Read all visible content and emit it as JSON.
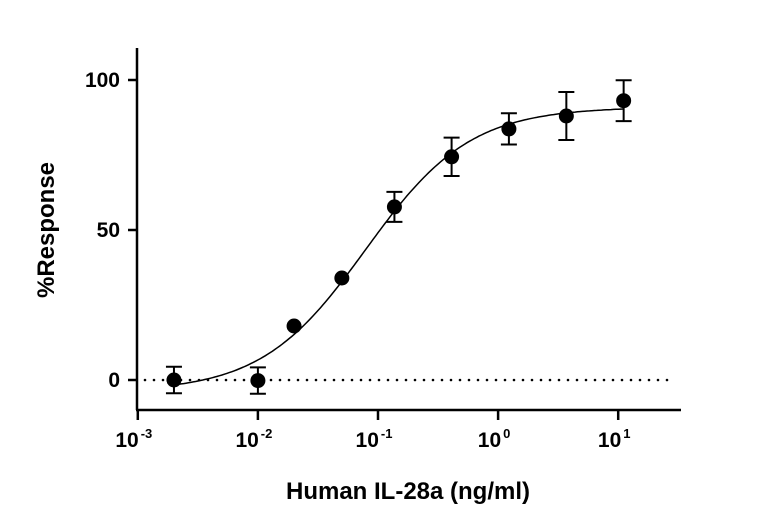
{
  "chart_data": {
    "type": "scatter",
    "xlabel": "Human IL-28a (ng/ml)",
    "ylabel": "%Response",
    "xscale": "log",
    "xlim": [
      0.001,
      33
    ],
    "ylim": [
      -10,
      110
    ],
    "x_ticks": [
      {
        "base": "10",
        "exp": "-3",
        "value": 0.001
      },
      {
        "base": "10",
        "exp": "-2",
        "value": 0.01
      },
      {
        "base": "10",
        "exp": "-1",
        "value": 0.1
      },
      {
        "base": "10",
        "exp": "0",
        "value": 1
      },
      {
        "base": "10",
        "exp": "1",
        "value": 10
      }
    ],
    "y_ticks": [
      {
        "label": "0",
        "value": 0
      },
      {
        "label": "50",
        "value": 50
      },
      {
        "label": "100",
        "value": 100
      }
    ],
    "grid": false,
    "reference_line": {
      "y": 0,
      "style": "dotted"
    },
    "points": [
      {
        "x": 0.002,
        "y": 0,
        "err": 4.4
      },
      {
        "x": 0.01,
        "y": -0.2,
        "err": 4.4
      },
      {
        "x": 0.02,
        "y": 18,
        "err": 0
      },
      {
        "x": 0.05,
        "y": 34,
        "err": 0
      },
      {
        "x": 0.137,
        "y": 57.7,
        "err": 5
      },
      {
        "x": 0.41,
        "y": 74.4,
        "err": 6.4
      },
      {
        "x": 1.23,
        "y": 83.7,
        "err": 5.2
      },
      {
        "x": 3.7,
        "y": 88,
        "err": 8
      },
      {
        "x": 11.1,
        "y": 93.1,
        "err": 6.8
      }
    ],
    "fit": {
      "model": "4PL",
      "bottom": -4,
      "top": 91,
      "ec50": 0.079,
      "hill": 1.0
    },
    "colors": {
      "marker": "#000000",
      "line": "#000000"
    }
  }
}
